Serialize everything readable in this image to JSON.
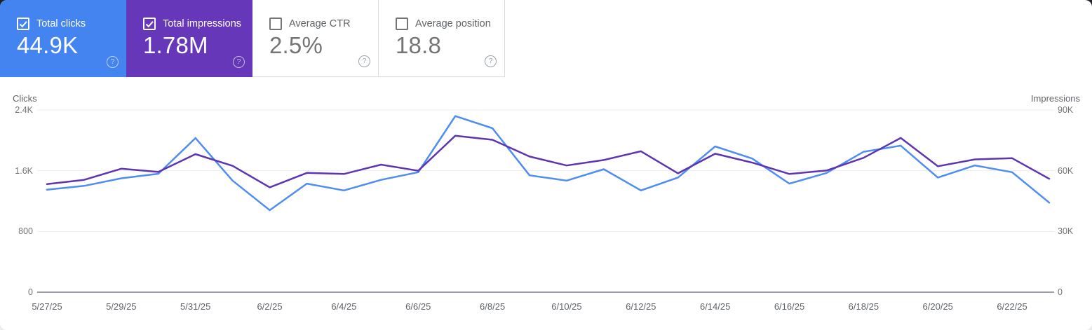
{
  "cards": [
    {
      "label": "Total clicks",
      "value": "44.9K",
      "selected": true,
      "color": "#4484f0"
    },
    {
      "label": "Total impressions",
      "value": "1.78M",
      "selected": true,
      "color": "#6637b8"
    },
    {
      "label": "Average CTR",
      "value": "2.5%",
      "selected": false
    },
    {
      "label": "Average position",
      "value": "18.8",
      "selected": false
    }
  ],
  "icons": {
    "help_glyph": "?"
  },
  "chart_data": {
    "type": "line",
    "x": [
      "5/27/25",
      "5/28/25",
      "5/29/25",
      "5/30/25",
      "5/31/25",
      "6/1/25",
      "6/2/25",
      "6/3/25",
      "6/4/25",
      "6/5/25",
      "6/6/25",
      "6/7/25",
      "6/8/25",
      "6/9/25",
      "6/10/25",
      "6/11/25",
      "6/12/25",
      "6/13/25",
      "6/14/25",
      "6/15/25",
      "6/16/25",
      "6/17/25",
      "6/18/25",
      "6/19/25",
      "6/20/25",
      "6/21/25",
      "6/22/25",
      "6/23/25"
    ],
    "x_label_every": 2,
    "grid": "horizontal",
    "legend": "none",
    "left_axis": {
      "title": "Clicks",
      "ticks": [
        "2.4K",
        "1.6K",
        "800",
        "0"
      ],
      "tick_values": [
        2400,
        1600,
        800,
        0
      ],
      "max": 2400
    },
    "right_axis": {
      "title": "Impressions",
      "ticks": [
        "90K",
        "60K",
        "30K",
        "0"
      ],
      "tick_values": [
        90000,
        60000,
        30000,
        0
      ],
      "max": 90000
    },
    "series": [
      {
        "name": "Clicks",
        "axis": "left",
        "color": "#4e8df2",
        "values": [
          1350,
          1400,
          1500,
          1560,
          2030,
          1470,
          1080,
          1430,
          1340,
          1480,
          1580,
          2320,
          2160,
          1540,
          1470,
          1620,
          1340,
          1510,
          1920,
          1760,
          1430,
          1570,
          1850,
          1930,
          1510,
          1670,
          1580,
          1180
        ]
      },
      {
        "name": "Impressions",
        "axis": "right",
        "color": "#5e35b1",
        "values": [
          53400,
          55500,
          61000,
          59400,
          68200,
          62400,
          51800,
          58900,
          58400,
          63000,
          60000,
          77300,
          75300,
          67000,
          62600,
          65300,
          69600,
          58700,
          68400,
          64000,
          58400,
          60100,
          66400,
          76200,
          62200,
          65600,
          66200,
          56000
        ]
      }
    ]
  }
}
